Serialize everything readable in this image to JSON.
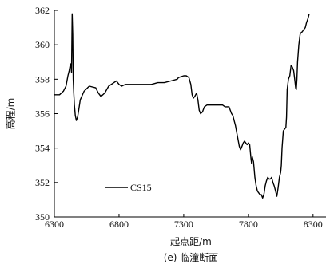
{
  "chart_data": {
    "type": "line",
    "title": "(e) 临潼断面",
    "xlabel": "起点距/m",
    "ylabel": "高程/m",
    "xlim": [
      6300,
      8400
    ],
    "ylim": [
      350,
      362
    ],
    "xticks": [
      6300,
      6800,
      7300,
      7800,
      8300
    ],
    "yticks": [
      350,
      352,
      354,
      356,
      358,
      360,
      362
    ],
    "xtick_labels": [
      "6300",
      "6800",
      "7300",
      "7800",
      "8300"
    ],
    "ytick_labels": [
      "350",
      "352",
      "354",
      "356",
      "358",
      "360",
      "362"
    ],
    "grid": false,
    "legend": {
      "position": "bottom-left",
      "entries": [
        "CS15"
      ]
    },
    "series": [
      {
        "name": "CS15",
        "color": "#000000",
        "x": [
          6300,
          6340,
          6370,
          6390,
          6405,
          6415,
          6425,
          6433,
          6438,
          6442,
          6446,
          6450,
          6455,
          6462,
          6470,
          6480,
          6490,
          6500,
          6530,
          6570,
          6620,
          6640,
          6660,
          6690,
          6720,
          6760,
          6780,
          6800,
          6820,
          6850,
          6900,
          6950,
          7000,
          7050,
          7100,
          7150,
          7200,
          7250,
          7260,
          7300,
          7320,
          7340,
          7355,
          7365,
          7375,
          7385,
          7400,
          7410,
          7420,
          7430,
          7445,
          7460,
          7480,
          7500,
          7520,
          7550,
          7580,
          7600,
          7620,
          7640,
          7650,
          7660,
          7670,
          7680,
          7690,
          7700,
          7710,
          7720,
          7730,
          7740,
          7750,
          7760,
          7770,
          7780,
          7790,
          7800,
          7810,
          7820,
          7825,
          7830,
          7840,
          7850,
          7860,
          7870,
          7880,
          7890,
          7900,
          7910,
          7920,
          7930,
          7940,
          7950,
          7960,
          7970,
          7980,
          7990,
          8000,
          8010,
          8020,
          8030,
          8040,
          8050,
          8055,
          8060,
          8070,
          8080,
          8090,
          8095,
          8100,
          8110,
          8120,
          8130,
          8140,
          8150,
          8160,
          8165,
          8170,
          8175,
          8180,
          8190,
          8200,
          8205,
          8210,
          8220,
          8230,
          8240,
          8250,
          8260,
          8270
        ],
        "y": [
          357.1,
          357.1,
          357.3,
          357.6,
          358.2,
          358.5,
          358.9,
          358.4,
          361.8,
          360.6,
          358.0,
          357.2,
          356.5,
          355.9,
          355.6,
          355.8,
          356.3,
          356.8,
          357.3,
          357.6,
          357.5,
          357.2,
          357.0,
          357.2,
          357.6,
          357.8,
          357.9,
          357.7,
          357.6,
          357.7,
          357.7,
          357.7,
          357.7,
          357.7,
          357.8,
          357.8,
          357.9,
          358.0,
          358.1,
          358.2,
          358.2,
          358.1,
          357.7,
          357.1,
          356.9,
          357.0,
          357.2,
          356.8,
          356.2,
          356.0,
          356.1,
          356.4,
          356.5,
          356.5,
          356.5,
          356.5,
          356.5,
          356.5,
          356.4,
          356.4,
          356.4,
          356.2,
          356.0,
          355.9,
          355.6,
          355.3,
          354.9,
          354.5,
          354.1,
          353.9,
          354.1,
          354.3,
          354.4,
          354.3,
          354.2,
          354.3,
          354.2,
          353.4,
          353.1,
          353.5,
          353.2,
          352.3,
          351.8,
          351.5,
          351.4,
          351.3,
          351.3,
          351.1,
          351.3,
          351.8,
          352.1,
          352.3,
          352.2,
          352.2,
          352.3,
          352.0,
          351.8,
          351.5,
          351.2,
          351.7,
          352.3,
          352.6,
          353.0,
          354.0,
          355.0,
          355.1,
          355.2,
          355.8,
          357.4,
          358.0,
          358.2,
          358.8,
          358.7,
          358.5,
          357.9,
          357.5,
          357.4,
          358.0,
          359.0,
          360.0,
          360.6,
          360.7,
          360.7,
          360.8,
          360.9,
          361.0,
          361.3,
          361.5,
          361.8
        ]
      }
    ]
  }
}
